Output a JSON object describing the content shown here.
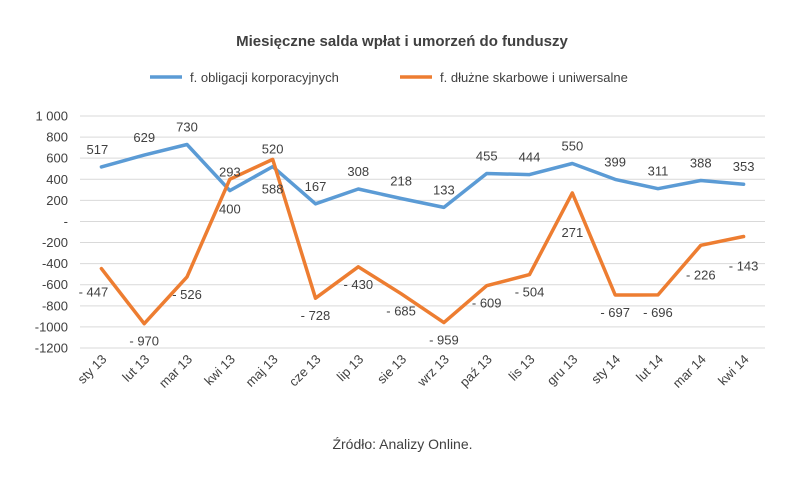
{
  "chart_data": {
    "type": "line",
    "title": "Miesięczne salda wpłat i umorzeń do funduszy",
    "categories": [
      "sty 13",
      "lut 13",
      "mar 13",
      "kwi 13",
      "maj 13",
      "cze 13",
      "lip 13",
      "sie 13",
      "wrz 13",
      "paź 13",
      "lis 13",
      "gru 13",
      "sty 14",
      "lut 14",
      "mar 14",
      "kwi 14"
    ],
    "series": [
      {
        "name": "f. obligacji korporacyjnych",
        "color": "#5b9bd5",
        "values": [
          517,
          629,
          730,
          293,
          520,
          167,
          308,
          218,
          133,
          455,
          444,
          550,
          399,
          311,
          388,
          353
        ],
        "labels": [
          "517",
          "629",
          "730",
          "293",
          "520",
          "167",
          "308",
          "218",
          "133",
          "455",
          "444",
          "550",
          "399",
          "311",
          "388",
          "353"
        ]
      },
      {
        "name": "f. dłużne skarbowe i uniwersalne",
        "color": "#ed7d31",
        "values": [
          -447,
          -970,
          -526,
          400,
          588,
          -728,
          -430,
          -685,
          -959,
          -609,
          -504,
          271,
          -697,
          -696,
          -226,
          -143
        ],
        "labels": [
          "- 447",
          "- 970",
          "- 526",
          "400",
          "588",
          "- 728",
          "- 430",
          "- 685",
          "- 959",
          "- 609",
          "- 504",
          "271",
          "- 697",
          "- 696",
          "- 226",
          "- 143"
        ]
      }
    ],
    "yticks": [
      "1 000",
      "800",
      "600",
      "400",
      "200",
      "-",
      "-200",
      "-400",
      "-600",
      "-800",
      "-1000",
      "-1200"
    ],
    "ytick_values": [
      1000,
      800,
      600,
      400,
      200,
      0,
      -200,
      -400,
      -600,
      -800,
      -1000,
      -1200
    ],
    "ylim": [
      -1200,
      1000
    ],
    "grid": true,
    "legend_position": "top"
  },
  "source": "Źródło: Analizy Online."
}
